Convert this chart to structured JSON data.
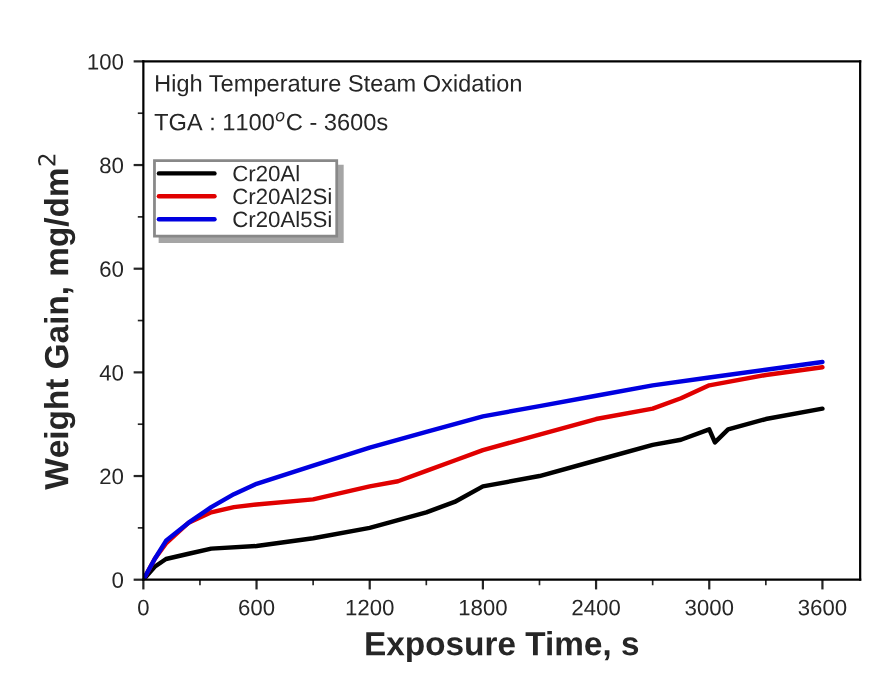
{
  "chart_data": {
    "type": "line",
    "xlabel": "Exposure Time, s",
    "ylabel": "Weight Gain, mg/dm$^{2}$",
    "annotations": [
      "High Temperature Steam Oxidation",
      "TGA : 1100$^{o}$C - 3600s"
    ],
    "xlim": [
      0,
      3800
    ],
    "xticks": [
      0,
      600,
      1200,
      1800,
      2400,
      3000,
      3600
    ],
    "ylim": [
      0,
      100
    ],
    "yticks": [
      0,
      20,
      40,
      60,
      80,
      100
    ],
    "grid": false,
    "legend": "top left",
    "marker": "none",
    "line_style": "solid",
    "series": [
      {
        "name": "Cr20Al",
        "color": "#000000",
        "x": [
          0,
          60,
          120,
          240,
          360,
          600,
          900,
          1200,
          1500,
          1650,
          1800,
          2100,
          2400,
          2700,
          2850,
          3000,
          3030,
          3100,
          3300,
          3600
        ],
        "values": [
          0,
          2.5,
          4,
          5,
          6,
          6.5,
          8,
          10,
          13,
          15,
          18,
          20,
          23,
          26,
          27,
          29,
          26.5,
          29,
          31,
          33
        ]
      },
      {
        "name": "Cr20Al2Si",
        "color": "#e00000",
        "x": [
          0,
          60,
          120,
          240,
          360,
          480,
          600,
          900,
          1200,
          1350,
          1500,
          1650,
          1800,
          2100,
          2400,
          2700,
          2850,
          3000,
          3300,
          3600
        ],
        "values": [
          0,
          4,
          7,
          11,
          13,
          14,
          14.5,
          15.5,
          18,
          19,
          21,
          23,
          25,
          28,
          31,
          33,
          35,
          37.5,
          39.5,
          41
        ]
      },
      {
        "name": "Cr20Al5Si",
        "color": "#0000e0",
        "x": [
          0,
          60,
          120,
          240,
          360,
          480,
          600,
          900,
          1200,
          1500,
          1800,
          2100,
          2400,
          2700,
          3000,
          3300,
          3600
        ],
        "values": [
          0,
          4,
          7.5,
          11,
          14,
          16.5,
          18.5,
          22,
          25.5,
          28.5,
          31.5,
          33.5,
          35.5,
          37.5,
          39,
          40.5,
          42
        ]
      }
    ]
  }
}
